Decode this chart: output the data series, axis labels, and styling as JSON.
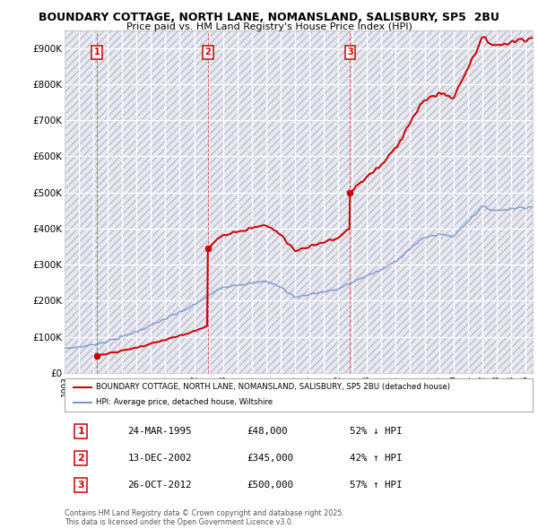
{
  "title1": "BOUNDARY COTTAGE, NORTH LANE, NOMANSLAND, SALISBURY, SP5  2BU",
  "title2": "Price paid vs. HM Land Registry's House Price Index (HPI)",
  "background_color": "#ffffff",
  "plot_bg_color": "#e8e8f0",
  "hpi_line_color": "#7799cc",
  "price_line_color": "#cc0000",
  "transactions": [
    {
      "num": 1,
      "date_label": "24-MAR-1995",
      "price_label": "£48,000",
      "hpi_label": "52% ↓ HPI",
      "x_year": 1995.23
    },
    {
      "num": 2,
      "date_label": "13-DEC-2002",
      "price_label": "£345,000",
      "hpi_label": "42% ↑ HPI",
      "x_year": 2002.95
    },
    {
      "num": 3,
      "date_label": "26-OCT-2012",
      "price_label": "£500,000",
      "hpi_label": "57% ↑ HPI",
      "x_year": 2012.82
    }
  ],
  "sale_prices": [
    48000,
    345000,
    500000
  ],
  "ylim": [
    0,
    950000
  ],
  "xlim_start": 1993,
  "xlim_end": 2025.5,
  "legend_line1": "BOUNDARY COTTAGE, NORTH LANE, NOMANSLAND, SALISBURY, SP5 2BU (detached house)",
  "legend_line2": "HPI: Average price, detached house, Wiltshire",
  "footnote": "Contains HM Land Registry data © Crown copyright and database right 2025.\nThis data is licensed under the Open Government Licence v3.0.",
  "yticks": [
    0,
    100000,
    200000,
    300000,
    400000,
    500000,
    600000,
    700000,
    800000,
    900000
  ],
  "ytick_labels": [
    "£0",
    "£100K",
    "£200K",
    "£300K",
    "£400K",
    "£500K",
    "£600K",
    "£700K",
    "£800K",
    "£900K"
  ],
  "hpi_base_x": [
    1993.0,
    1994.0,
    1995.0,
    1996.0,
    1997.0,
    1998.0,
    1999.0,
    2000.0,
    2001.0,
    2002.0,
    2003.0,
    2004.0,
    2005.0,
    2006.0,
    2007.0,
    2008.0,
    2009.0,
    2010.0,
    2011.0,
    2012.0,
    2013.0,
    2014.0,
    2015.0,
    2016.0,
    2017.0,
    2018.0,
    2019.0,
    2020.0,
    2021.0,
    2022.0,
    2023.0,
    2024.0,
    2025.0
  ],
  "hpi_base_y": [
    68000,
    72000,
    78000,
    88000,
    100000,
    115000,
    132000,
    150000,
    168000,
    188000,
    215000,
    238000,
    245000,
    248000,
    255000,
    238000,
    210000,
    218000,
    225000,
    232000,
    252000,
    270000,
    285000,
    310000,
    345000,
    375000,
    385000,
    378000,
    420000,
    460000,
    450000,
    455000,
    460000
  ]
}
